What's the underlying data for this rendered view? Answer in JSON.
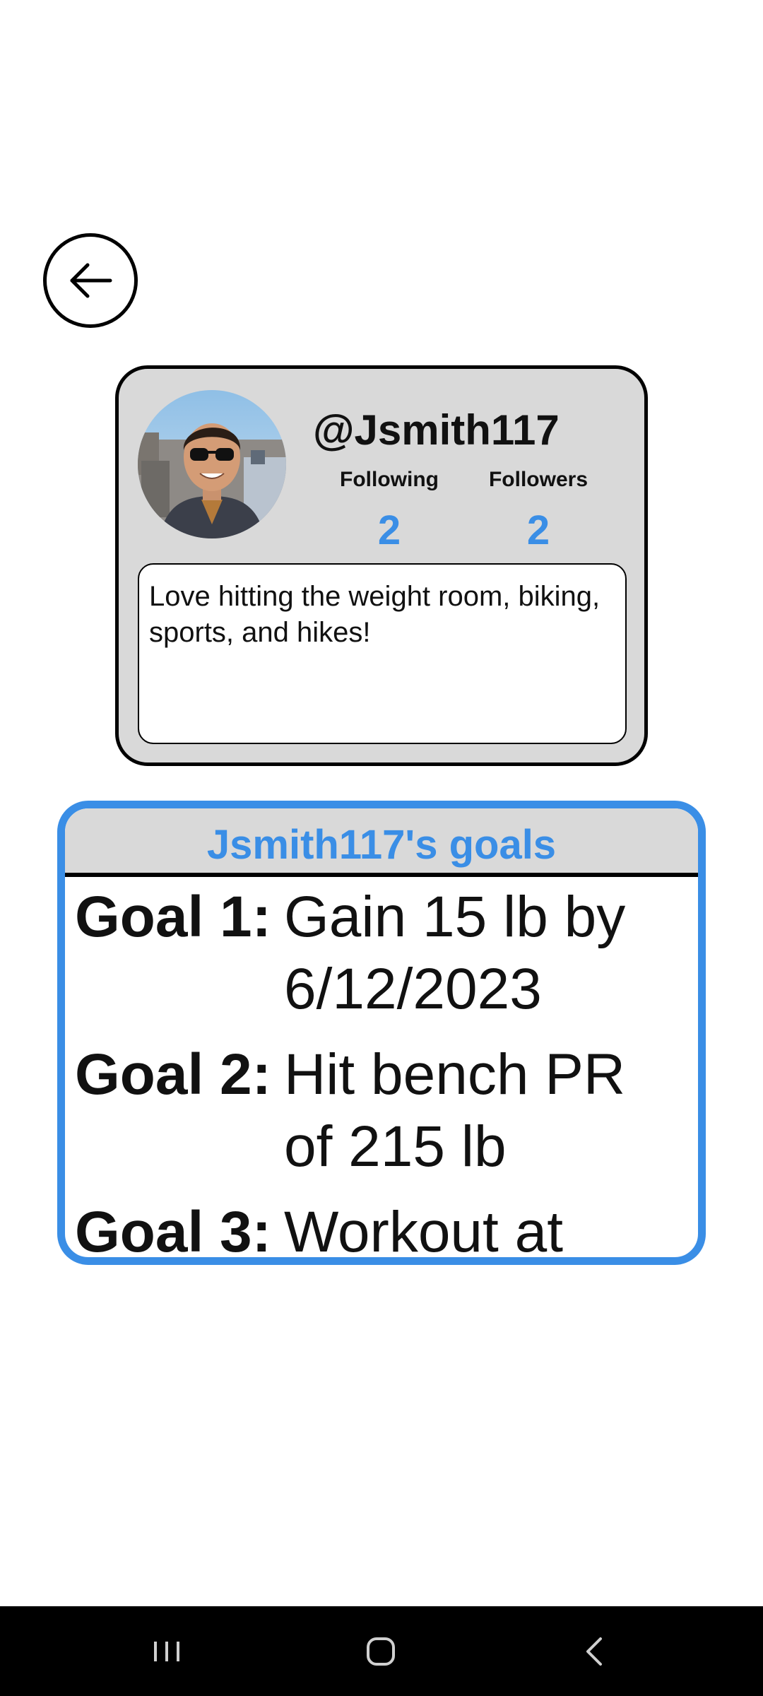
{
  "profile": {
    "username": "@Jsmith117",
    "following_label": "Following",
    "following_count": "2",
    "followers_label": "Followers",
    "followers_count": "2",
    "bio": "Love hitting the weight room, biking, sports, and hikes!"
  },
  "goals": {
    "title": "Jsmith117's goals",
    "items": [
      {
        "label": "Goal 1:",
        "text": "Gain 15 lb by 6/12/2023"
      },
      {
        "label": "Goal 2:",
        "text": "Hit bench PR of 215 lb"
      },
      {
        "label": "Goal 3:",
        "text": "Workout at"
      }
    ]
  },
  "icons": {
    "back": "arrow-left-icon",
    "nav_recents": "recents-icon",
    "nav_home": "home-icon",
    "nav_back": "chevron-left-icon"
  },
  "colors": {
    "accent": "#3a8ee6",
    "card_bg": "#d9d9d9",
    "nav_bg": "#000000"
  }
}
